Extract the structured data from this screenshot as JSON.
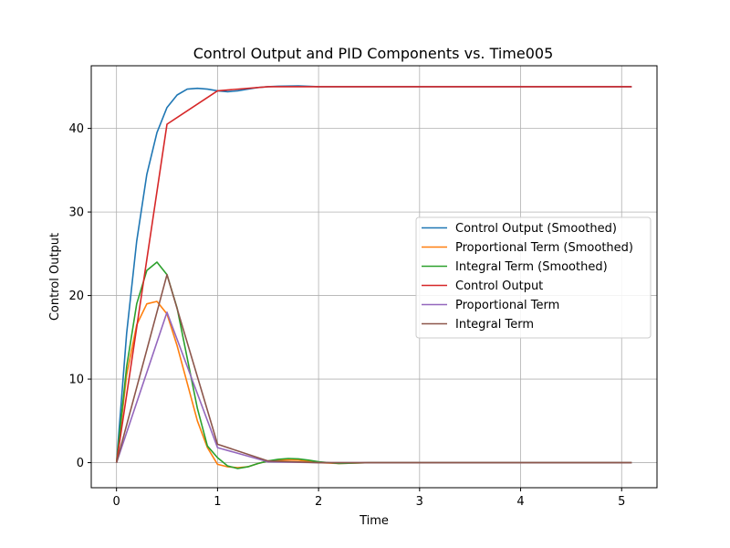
{
  "chart_data": {
    "type": "line",
    "title": "Control Output and PID Components vs. Time005",
    "xlabel": "Time",
    "ylabel": "Control Output",
    "xlim": [
      -0.25,
      5.35
    ],
    "ylim": [
      -3,
      47.5
    ],
    "xticks": [
      0,
      1,
      2,
      3,
      4,
      5
    ],
    "yticks": [
      0,
      10,
      20,
      30,
      40
    ],
    "grid": true,
    "legend_position": "center-right",
    "series": [
      {
        "name": "Control Output (Smoothed)",
        "color": "#1f77b4",
        "x": [
          0,
          0.1,
          0.2,
          0.3,
          0.4,
          0.5,
          0.6,
          0.7,
          0.8,
          0.9,
          1.0,
          1.1,
          1.2,
          1.3,
          1.4,
          1.5,
          1.6,
          1.8,
          2.0,
          2.5,
          3.0,
          4.0,
          5.1
        ],
        "y": [
          0,
          15.5,
          26.5,
          34.5,
          39.5,
          42.5,
          44.0,
          44.7,
          44.8,
          44.7,
          44.5,
          44.4,
          44.5,
          44.7,
          44.9,
          45.0,
          45.05,
          45.1,
          45.0,
          45.0,
          45.0,
          45.0,
          45.0
        ]
      },
      {
        "name": "Proportional Term (Smoothed)",
        "color": "#ff7f0e",
        "x": [
          0,
          0.1,
          0.2,
          0.3,
          0.4,
          0.5,
          0.6,
          0.7,
          0.8,
          0.9,
          1.0,
          1.1,
          1.2,
          1.3,
          1.4,
          1.5,
          1.6,
          1.7,
          1.8,
          1.9,
          2.0,
          2.2,
          2.5,
          3.0,
          4.0,
          5.1
        ],
        "y": [
          0,
          10.5,
          16.5,
          19.0,
          19.3,
          17.8,
          14.0,
          9.5,
          5.0,
          1.8,
          -0.2,
          -0.5,
          -0.6,
          -0.5,
          -0.1,
          0.2,
          0.3,
          0.35,
          0.3,
          0.15,
          0.0,
          -0.1,
          0.0,
          0.0,
          0.0,
          0.0
        ]
      },
      {
        "name": "Integral Term (Smoothed)",
        "color": "#2ca02c",
        "x": [
          0,
          0.1,
          0.2,
          0.3,
          0.4,
          0.5,
          0.6,
          0.7,
          0.8,
          0.9,
          1.0,
          1.1,
          1.2,
          1.3,
          1.4,
          1.5,
          1.6,
          1.7,
          1.8,
          1.9,
          2.0,
          2.2,
          2.5,
          3.0,
          4.0,
          5.1
        ],
        "y": [
          0,
          11.5,
          19.0,
          23.0,
          24.0,
          22.5,
          18.5,
          12.5,
          6.5,
          2.0,
          0.6,
          -0.4,
          -0.7,
          -0.5,
          -0.1,
          0.2,
          0.4,
          0.5,
          0.45,
          0.3,
          0.1,
          -0.1,
          0.0,
          0.0,
          0.0,
          0.0
        ]
      },
      {
        "name": "Control Output",
        "color": "#d62728",
        "x": [
          0,
          0.5,
          1.0,
          1.5,
          2.0,
          2.5,
          3.0,
          3.5,
          4.0,
          4.5,
          5.1
        ],
        "y": [
          0,
          40.5,
          44.5,
          45.0,
          45.0,
          45.0,
          45.0,
          45.0,
          45.0,
          45.0,
          45.0
        ]
      },
      {
        "name": "Proportional Term",
        "color": "#9467bd",
        "x": [
          0,
          0.5,
          1.0,
          1.5,
          2.0,
          2.5,
          3.0,
          3.5,
          4.0,
          4.5,
          5.1
        ],
        "y": [
          0,
          18.0,
          1.8,
          0.1,
          0.0,
          0.0,
          0.0,
          0.0,
          0.0,
          0.0,
          0.0
        ]
      },
      {
        "name": "Integral Term",
        "color": "#8c564b",
        "x": [
          0,
          0.5,
          1.0,
          1.5,
          2.0,
          2.5,
          3.0,
          3.5,
          4.0,
          4.5,
          5.1
        ],
        "y": [
          0,
          22.5,
          2.2,
          0.2,
          0.0,
          0.0,
          0.0,
          0.0,
          0.0,
          0.0,
          0.0
        ]
      }
    ]
  }
}
